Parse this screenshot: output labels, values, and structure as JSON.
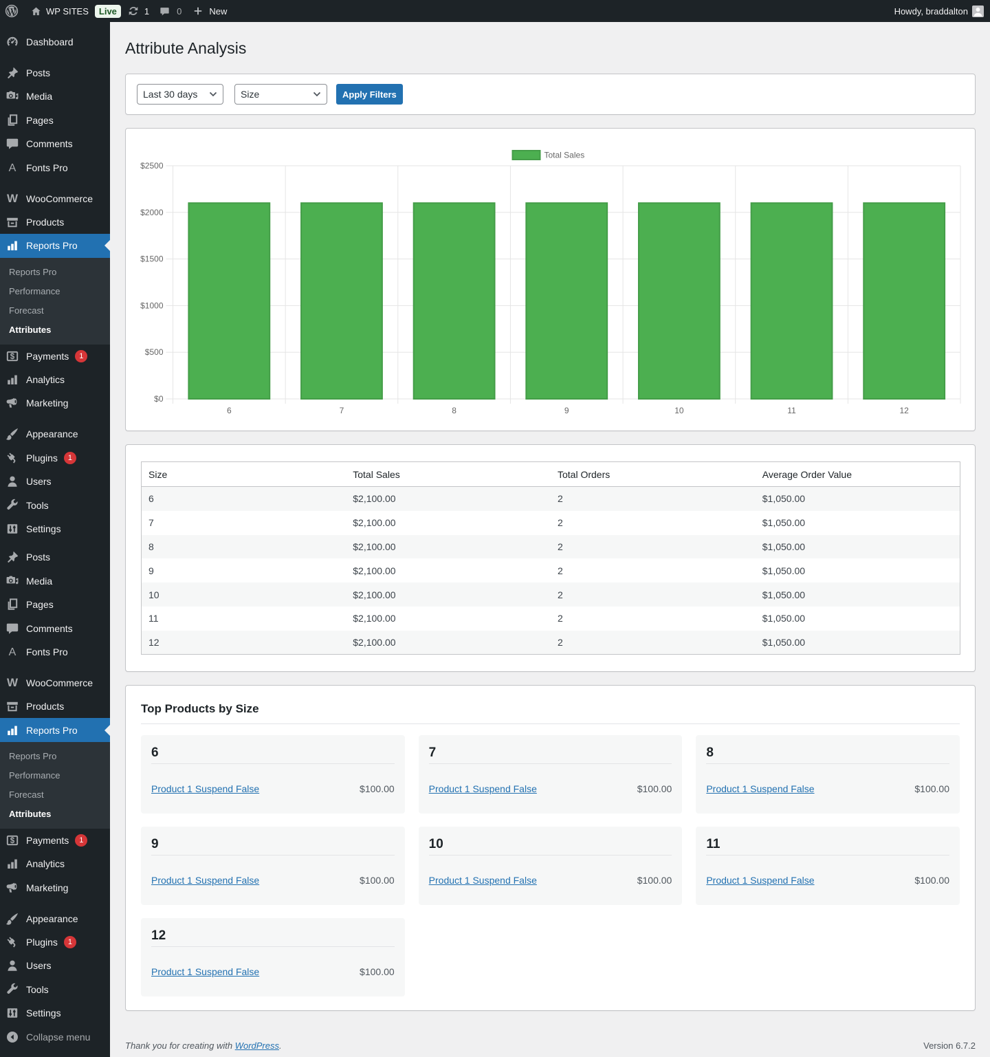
{
  "admin_bar": {
    "site_name": "WP SITES",
    "env_badge": "Live",
    "updates_count": "1",
    "comments_count": "0",
    "new_label": "New",
    "howdy": "Howdy, braddalton"
  },
  "sidebar": {
    "items": [
      {
        "label": "Dashboard",
        "icon": "dashboard"
      },
      {
        "type": "sep"
      },
      {
        "label": "Posts",
        "icon": "pin"
      },
      {
        "label": "Media",
        "icon": "media"
      },
      {
        "label": "Pages",
        "icon": "pages"
      },
      {
        "label": "Comments",
        "icon": "comments"
      },
      {
        "label": "Fonts Pro",
        "icon": "letter-a"
      },
      {
        "type": "sep"
      },
      {
        "label": "WooCommerce",
        "icon": "woo"
      },
      {
        "label": "Products",
        "icon": "products"
      },
      {
        "label": "Reports Pro",
        "icon": "chart-bar",
        "active": true,
        "submenu": [
          {
            "label": "Reports Pro"
          },
          {
            "label": "Performance"
          },
          {
            "label": "Forecast"
          },
          {
            "label": "Attributes",
            "current": true
          }
        ]
      },
      {
        "label": "Payments",
        "icon": "payments",
        "badge": "1"
      },
      {
        "label": "Analytics",
        "icon": "chart-bar"
      },
      {
        "label": "Marketing",
        "icon": "megaphone"
      },
      {
        "type": "sep"
      },
      {
        "label": "Appearance",
        "icon": "brush"
      },
      {
        "label": "Plugins",
        "icon": "plugin",
        "badge": "1"
      },
      {
        "label": "Users",
        "icon": "user"
      },
      {
        "label": "Tools",
        "icon": "wrench"
      },
      {
        "label": "Settings",
        "icon": "settings"
      },
      {
        "type": "sep",
        "variant": "tight"
      },
      {
        "label": "Posts",
        "icon": "pin"
      },
      {
        "label": "Media",
        "icon": "media"
      },
      {
        "label": "Pages",
        "icon": "pages"
      },
      {
        "label": "Comments",
        "icon": "comments"
      },
      {
        "label": "Fonts Pro",
        "icon": "letter-a"
      },
      {
        "type": "sep"
      },
      {
        "label": "WooCommerce",
        "icon": "woo"
      },
      {
        "label": "Products",
        "icon": "products"
      },
      {
        "label": "Reports Pro",
        "icon": "chart-bar",
        "active": true,
        "submenu": [
          {
            "label": "Reports Pro"
          },
          {
            "label": "Performance"
          },
          {
            "label": "Forecast"
          },
          {
            "label": "Attributes",
            "current": true
          }
        ]
      },
      {
        "label": "Payments",
        "icon": "payments",
        "badge": "1"
      },
      {
        "label": "Analytics",
        "icon": "chart-bar"
      },
      {
        "label": "Marketing",
        "icon": "megaphone"
      },
      {
        "type": "sep"
      },
      {
        "label": "Appearance",
        "icon": "brush"
      },
      {
        "label": "Plugins",
        "icon": "plugin",
        "badge": "1"
      },
      {
        "label": "Users",
        "icon": "user"
      },
      {
        "label": "Tools",
        "icon": "wrench"
      },
      {
        "label": "Settings",
        "icon": "settings"
      },
      {
        "label": "Collapse menu",
        "icon": "collapse",
        "collapse": true
      }
    ]
  },
  "page": {
    "title": "Attribute Analysis",
    "filters": {
      "date_range_value": "Last 30 days",
      "attribute_value": "Size",
      "apply_label": "Apply Filters"
    },
    "table": {
      "columns": [
        "Size",
        "Total Sales",
        "Total Orders",
        "Average Order Value"
      ],
      "rows": [
        [
          "6",
          "$2,100.00",
          "2",
          "$1,050.00"
        ],
        [
          "7",
          "$2,100.00",
          "2",
          "$1,050.00"
        ],
        [
          "8",
          "$2,100.00",
          "2",
          "$1,050.00"
        ],
        [
          "9",
          "$2,100.00",
          "2",
          "$1,050.00"
        ],
        [
          "10",
          "$2,100.00",
          "2",
          "$1,050.00"
        ],
        [
          "11",
          "$2,100.00",
          "2",
          "$1,050.00"
        ],
        [
          "12",
          "$2,100.00",
          "2",
          "$1,050.00"
        ]
      ]
    },
    "top_products": {
      "heading": "Top Products by Size",
      "cards": [
        {
          "size": "6",
          "product": "Product 1 Suspend False",
          "price": "$100.00"
        },
        {
          "size": "7",
          "product": "Product 1 Suspend False",
          "price": "$100.00"
        },
        {
          "size": "8",
          "product": "Product 1 Suspend False",
          "price": "$100.00"
        },
        {
          "size": "9",
          "product": "Product 1 Suspend False",
          "price": "$100.00"
        },
        {
          "size": "10",
          "product": "Product 1 Suspend False",
          "price": "$100.00"
        },
        {
          "size": "11",
          "product": "Product 1 Suspend False",
          "price": "$100.00"
        },
        {
          "size": "12",
          "product": "Product 1 Suspend False",
          "price": "$100.00"
        }
      ]
    },
    "footer": {
      "thanks_prefix": "Thank you for creating with ",
      "thanks_link": "WordPress",
      "thanks_suffix": ".",
      "version": "Version 6.7.2"
    }
  },
  "chart_data": {
    "type": "bar",
    "categories": [
      "6",
      "7",
      "8",
      "9",
      "10",
      "11",
      "12"
    ],
    "series": [
      {
        "name": "Total Sales",
        "values": [
          2100,
          2100,
          2100,
          2100,
          2100,
          2100,
          2100
        ]
      }
    ],
    "title": "",
    "xlabel": "",
    "ylabel": "",
    "ylim": [
      0,
      2500
    ],
    "ytick_step": 500,
    "ytick_prefix": "$",
    "legend_position": "top",
    "grid": true,
    "bar_color": "#4caf50",
    "bar_border_color": "#449d48",
    "grid_color": "#e5e5e5",
    "tick_color": "#666666"
  }
}
